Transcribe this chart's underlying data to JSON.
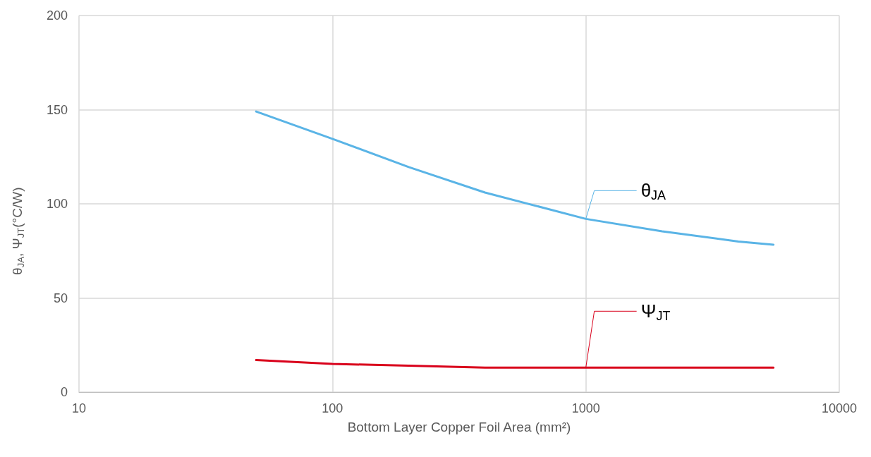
{
  "chart_data": {
    "type": "line",
    "xlabel": "Bottom Layer Copper Foil Area (mm²)",
    "ylabel": "θ$_{JA}$, Ψ$_{JT}$(°C/W)",
    "log": "x",
    "grid": true,
    "marker": "none",
    "line_style": "solid",
    "xlim": [
      10,
      10000
    ],
    "xticks": [
      10,
      100,
      1000,
      10000
    ],
    "ylim": [
      0,
      200
    ],
    "yticks": [
      0,
      50,
      100,
      150,
      200
    ],
    "series": [
      {
        "color": "#5ab4e6",
        "x": [
          50,
          100,
          200,
          400,
          1000,
          2000,
          4000,
          5500
        ],
        "values": [
          149,
          134.5,
          119.5,
          106,
          92,
          85.4,
          80,
          78.3
        ]
      },
      {
        "color": "#d9001b",
        "x": [
          50,
          100,
          200,
          400,
          1000,
          5500
        ],
        "values": [
          17,
          15,
          14,
          13,
          13,
          13
        ]
      }
    ],
    "annotations": [
      {
        "text": "θ$_{JA}$",
        "x": 1000,
        "y": 92
      },
      {
        "text": "Ψ$_{JT}$",
        "x": 1000,
        "y": 13
      }
    ]
  }
}
